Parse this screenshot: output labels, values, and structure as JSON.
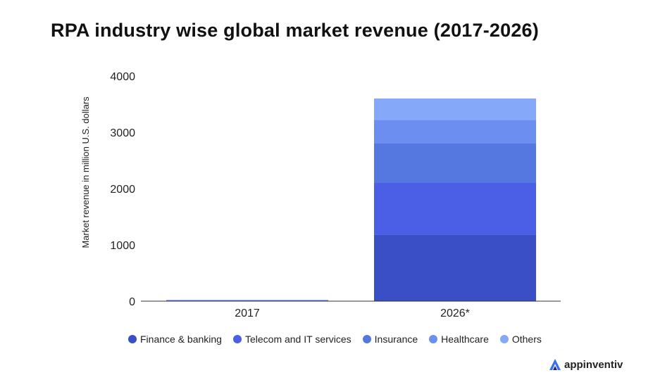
{
  "chart_data": {
    "type": "bar",
    "stacked": true,
    "title": "RPA industry wise global market revenue (2017-2026)",
    "xlabel": "",
    "ylabel": "Market revenue in million U.S. dollars",
    "ylim": [
      0,
      4000
    ],
    "yticks": [
      0,
      1000,
      2000,
      3000,
      4000
    ],
    "categories": [
      "2017",
      "2026*"
    ],
    "series": [
      {
        "name": "Finance & banking",
        "color": "#3a4fc6",
        "values": [
          8,
          1180
        ]
      },
      {
        "name": "Telecom and IT services",
        "color": "#4a5ee6",
        "values": [
          6,
          920
        ]
      },
      {
        "name": "Insurance",
        "color": "#5577e0",
        "values": [
          4,
          700
        ]
      },
      {
        "name": "Healthcare",
        "color": "#6b8ef0",
        "values": [
          3,
          420
        ]
      },
      {
        "name": "Others",
        "color": "#86a8f8",
        "values": [
          3,
          380
        ]
      }
    ],
    "grid": false,
    "legend_position": "bottom"
  },
  "brand": {
    "name": "appinventiv",
    "color": "#3a6ff0"
  }
}
